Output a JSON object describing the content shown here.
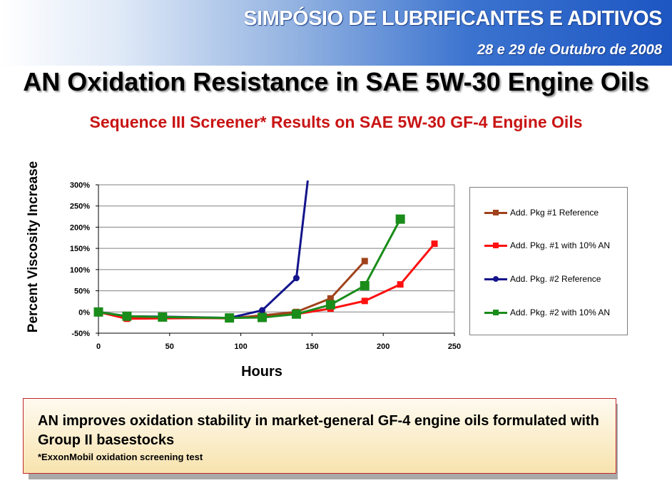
{
  "header": {
    "event_title": "SIMPÓSIO DE LUBRIFICANTES E ADITIVOS",
    "event_date": "28 e 29 de Outubro de 2008"
  },
  "slide": {
    "title": "AN Oxidation Resistance in SAE 5W-30 Engine Oils",
    "subtitle": "Sequence III Screener* Results on SAE 5W-30 GF-4 Engine Oils"
  },
  "chart_data": {
    "type": "line",
    "xlabel": "Hours",
    "ylabel": "Percent Viscosity Increase",
    "xlim": [
      0,
      250
    ],
    "ylim": [
      -50,
      300
    ],
    "x_ticks": [
      "0",
      "50",
      "100",
      "150",
      "200",
      "250"
    ],
    "y_ticks": [
      "-50%",
      "0%",
      "50%",
      "100%",
      "150%",
      "200%",
      "250%",
      "300%"
    ],
    "grid": "horizontal",
    "legend_position": "right",
    "series": [
      {
        "name": "Add. Pkg #1 Reference",
        "color": "#a0421c",
        "marker": "square",
        "x": [
          0,
          20,
          45,
          92,
          115,
          139,
          163,
          187
        ],
        "y": [
          0,
          -15,
          -13,
          -15,
          -8,
          0,
          32,
          120
        ]
      },
      {
        "name": "Add. Pkg. #1 with 10% AN",
        "color": "#ff1010",
        "marker": "square",
        "x": [
          0,
          20,
          45,
          92,
          115,
          139,
          163,
          187,
          212,
          236
        ],
        "y": [
          0,
          -16,
          -15,
          -14,
          -12,
          -5,
          8,
          26,
          65,
          161
        ]
      },
      {
        "name": "Add. Pkg. #2  Reference",
        "color": "#14148c",
        "marker": "circle",
        "x": [
          0,
          20,
          45,
          92,
          115,
          139,
          147
        ],
        "y": [
          0,
          -10,
          -11,
          -14,
          4,
          80,
          310
        ]
      },
      {
        "name": "Add. Pkg. #2  with 10% AN",
        "color": "#1a8c1a",
        "marker": "square",
        "x": [
          0,
          20,
          45,
          92,
          115,
          139,
          163,
          187,
          212
        ],
        "y": [
          0,
          -10,
          -12,
          -14,
          -13,
          -5,
          17,
          62,
          219
        ]
      }
    ]
  },
  "callout": {
    "text": "AN improves oxidation stability in market-general GF-4 engine oils formulated with Group II basestocks",
    "footnote": "*ExxonMobil oxidation screening test"
  }
}
